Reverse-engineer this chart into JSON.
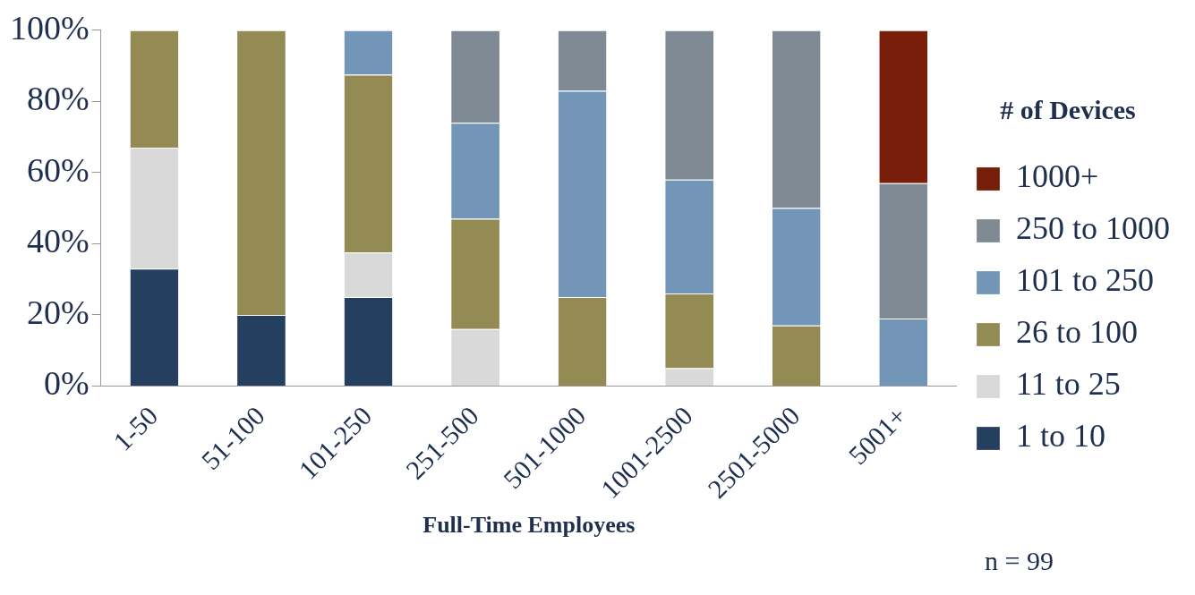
{
  "chart_data": {
    "type": "bar",
    "stacked": true,
    "xlabel": "Full-Time Employees",
    "legend_title": "# of Devices",
    "legend": "right",
    "grid": false,
    "categories": [
      "1-50",
      "51-100",
      "101-250",
      "251-500",
      "501-1000",
      "1001-2500",
      "2501-5000",
      "5001+"
    ],
    "ylim": [
      0,
      100
    ],
    "yticks": [
      {
        "value": 0,
        "label": "0%"
      },
      {
        "value": 20,
        "label": "20%"
      },
      {
        "value": 40,
        "label": "40%"
      },
      {
        "value": 60,
        "label": "60%"
      },
      {
        "value": 80,
        "label": "80%"
      },
      {
        "value": 100,
        "label": "100%"
      }
    ],
    "series": [
      {
        "name": "1 to 10",
        "color": "#243f60",
        "values": [
          33,
          20,
          25,
          0,
          0,
          0,
          0,
          0
        ]
      },
      {
        "name": "11 to 25",
        "color": "#d9d9d9",
        "values": [
          34,
          0,
          12.5,
          16,
          0,
          5,
          0,
          0
        ]
      },
      {
        "name": "26 to 100",
        "color": "#948a54",
        "values": [
          33,
          80,
          50,
          31,
          25,
          21,
          17,
          0
        ]
      },
      {
        "name": "101 to 250",
        "color": "#7295b8",
        "values": [
          0,
          0,
          12.5,
          27,
          58,
          32,
          33,
          19
        ]
      },
      {
        "name": "250 to 1000",
        "color": "#808a94",
        "values": [
          0,
          0,
          0,
          26,
          17,
          42,
          50,
          38
        ]
      },
      {
        "name": "1000+",
        "color": "#7a1e0c",
        "values": [
          0,
          0,
          0,
          0,
          0,
          0,
          0,
          43
        ]
      }
    ],
    "annotations": [
      "n = 99"
    ]
  }
}
